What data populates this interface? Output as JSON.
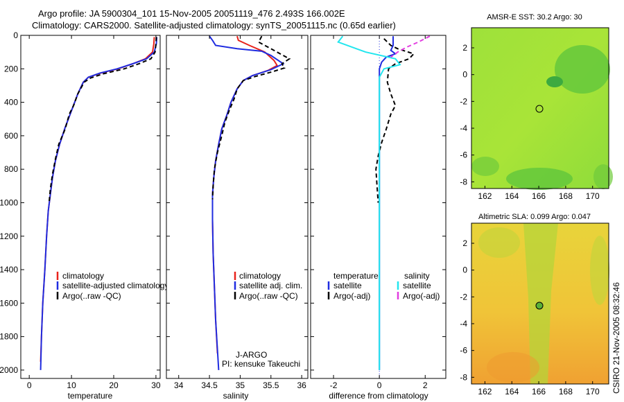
{
  "title_line1": "Argo profile: JA 5900304_101 15-Nov-2005 20051119_476 2.493S 166.002E",
  "title_line2": "Climatology: CARS2000. Satellite-adjusted climatology: synTS_20051115.nc (0.65d earlier)",
  "colors": {
    "climatology": "#e8221b",
    "satellite": "#1f2ce0",
    "argo": "#000000",
    "salinity_satellite": "#22e6ee",
    "salinity_argo": "#e23de0"
  },
  "chart_data": [
    {
      "type": "line",
      "panel": "temperature",
      "xlabel": "temperature",
      "xlim": [
        -2,
        31
      ],
      "ylim": [
        0,
        2050
      ],
      "xticks": [
        "0",
        "10",
        "20",
        "30"
      ],
      "xtick_values": [
        0,
        10,
        20,
        30
      ],
      "yticks": [
        "0",
        "200",
        "400",
        "600",
        "800",
        "1000",
        "1200",
        "1400",
        "1600",
        "1800",
        "2000"
      ],
      "ytick_values": [
        0,
        200,
        400,
        600,
        800,
        1000,
        1200,
        1400,
        1600,
        1800,
        2000
      ],
      "legend": [
        "climatology",
        "satellite-adjusted climatology",
        "Argo(..raw -QC)"
      ],
      "series": [
        {
          "name": "climatology",
          "color_key": "climatology",
          "dash": "",
          "points": [
            [
              29.6,
              10
            ],
            [
              29.5,
              50
            ],
            [
              29.2,
              100
            ],
            [
              27.5,
              140
            ],
            [
              24.5,
              170
            ],
            [
              21,
              200
            ],
            [
              17,
              225
            ],
            [
              14,
              250
            ],
            [
              12.8,
              280
            ],
            [
              11.5,
              350
            ],
            [
              10,
              450
            ],
            [
              8.5,
              550
            ],
            [
              7.2,
              650
            ],
            [
              6.2,
              750
            ],
            [
              5.5,
              850
            ],
            [
              5,
              950
            ],
            [
              4.5,
              1050
            ],
            [
              4.1,
              1200
            ],
            [
              3.7,
              1400
            ],
            [
              3.2,
              1600
            ],
            [
              2.9,
              1800
            ],
            [
              2.7,
              1950
            ]
          ]
        },
        {
          "name": "satellite-adjusted climatology",
          "color_key": "satellite",
          "dash": "",
          "points": [
            [
              30.2,
              10
            ],
            [
              30.1,
              50
            ],
            [
              29.6,
              100
            ],
            [
              27.8,
              140
            ],
            [
              24.5,
              170
            ],
            [
              20.8,
              200
            ],
            [
              16.8,
              225
            ],
            [
              14,
              250
            ],
            [
              12.8,
              280
            ],
            [
              11.5,
              350
            ],
            [
              10,
              450
            ],
            [
              8.5,
              550
            ],
            [
              7.2,
              650
            ],
            [
              6.2,
              750
            ],
            [
              5.5,
              850
            ],
            [
              5,
              950
            ],
            [
              4.5,
              1050
            ],
            [
              4.1,
              1200
            ],
            [
              3.7,
              1400
            ],
            [
              3.2,
              1600
            ],
            [
              2.9,
              1800
            ],
            [
              2.7,
              2000
            ]
          ]
        },
        {
          "name": "Argo(..raw -QC)",
          "color_key": "argo",
          "dash": "6,4",
          "points": [
            [
              30.1,
              10
            ],
            [
              30,
              50
            ],
            [
              29.8,
              100
            ],
            [
              28.8,
              140
            ],
            [
              26,
              170
            ],
            [
              22.5,
              200
            ],
            [
              17.5,
              230
            ],
            [
              14.5,
              255
            ],
            [
              13,
              280
            ],
            [
              11.5,
              350
            ],
            [
              10.5,
              420
            ],
            [
              9.5,
              470
            ],
            [
              8.5,
              560
            ],
            [
              7,
              650
            ],
            [
              6.2,
              740
            ],
            [
              5.5,
              830
            ],
            [
              5,
              920
            ],
            [
              4.7,
              1000
            ]
          ]
        }
      ]
    },
    {
      "type": "line",
      "panel": "salinity",
      "xlabel": "salinity",
      "xlim": [
        33.8,
        36.1
      ],
      "ylim": [
        0,
        2050
      ],
      "xticks": [
        "34",
        "34.5",
        "35",
        "35.5",
        "36"
      ],
      "xtick_values": [
        34,
        34.5,
        35,
        35.5,
        36
      ],
      "legend": [
        "climatology",
        "satellite adj. clim.",
        "Argo(..raw -QC)"
      ],
      "annotations": [
        "J-ARGO",
        "PI: kensuke Takeuchi"
      ],
      "series": [
        {
          "name": "climatology",
          "color_key": "climatology",
          "dash": "",
          "points": [
            [
              34.95,
              5
            ],
            [
              34.97,
              30
            ],
            [
              35.15,
              60
            ],
            [
              35.4,
              100
            ],
            [
              35.55,
              150
            ],
            [
              35.6,
              180
            ],
            [
              35.45,
              210
            ],
            [
              35.2,
              240
            ],
            [
              35.05,
              270
            ],
            [
              34.95,
              320
            ],
            [
              34.85,
              400
            ],
            [
              34.78,
              480
            ],
            [
              34.7,
              560
            ],
            [
              34.65,
              650
            ],
            [
              34.6,
              750
            ],
            [
              34.57,
              850
            ],
            [
              34.55,
              950
            ],
            [
              34.55,
              1100
            ],
            [
              34.56,
              1300
            ],
            [
              34.58,
              1500
            ],
            [
              34.6,
              1700
            ],
            [
              34.63,
              1900
            ]
          ]
        },
        {
          "name": "satellite adj. clim.",
          "color_key": "satellite",
          "dash": "",
          "points": [
            [
              34.5,
              5
            ],
            [
              34.55,
              30
            ],
            [
              34.6,
              60
            ],
            [
              34.95,
              80
            ],
            [
              35.35,
              95
            ],
            [
              35.5,
              120
            ],
            [
              35.7,
              170
            ],
            [
              35.5,
              205
            ],
            [
              35.2,
              240
            ],
            [
              35.05,
              270
            ],
            [
              34.95,
              320
            ],
            [
              34.85,
              400
            ],
            [
              34.78,
              480
            ],
            [
              34.7,
              560
            ],
            [
              34.65,
              650
            ],
            [
              34.6,
              750
            ],
            [
              34.57,
              850
            ],
            [
              34.55,
              950
            ],
            [
              34.55,
              1100
            ],
            [
              34.56,
              1300
            ],
            [
              34.58,
              1500
            ],
            [
              34.6,
              1700
            ],
            [
              34.65,
              2000
            ]
          ]
        },
        {
          "name": "Argo(..raw -QC)",
          "color_key": "argo",
          "dash": "6,4",
          "points": [
            [
              35.35,
              5
            ],
            [
              35.3,
              40
            ],
            [
              35.5,
              80
            ],
            [
              35.65,
              110
            ],
            [
              35.8,
              140
            ],
            [
              35.68,
              170
            ],
            [
              35.72,
              195
            ],
            [
              35.5,
              220
            ],
            [
              35.25,
              245
            ],
            [
              35.05,
              270
            ],
            [
              34.95,
              320
            ],
            [
              34.9,
              380
            ],
            [
              34.82,
              450
            ],
            [
              34.75,
              520
            ],
            [
              34.7,
              600
            ],
            [
              34.63,
              700
            ],
            [
              34.58,
              800
            ],
            [
              34.56,
              900
            ],
            [
              34.55,
              980
            ]
          ]
        }
      ]
    },
    {
      "type": "line",
      "panel": "difference",
      "xlabel": "difference from climatology",
      "xlim": [
        -3,
        2.9
      ],
      "ylim": [
        0,
        2050
      ],
      "xticks": [
        "-2",
        "0",
        "2"
      ],
      "xtick_values": [
        -2,
        0,
        2
      ],
      "legend_headers": [
        "temperature",
        "salinity"
      ],
      "legend": [
        "satellite",
        "Argo(-adj)",
        "satellite",
        "Argo(-adj)"
      ],
      "series": [
        {
          "name": "temperature satellite",
          "color_key": "satellite",
          "dash": "",
          "points": [
            [
              0.6,
              5
            ],
            [
              0.6,
              60
            ],
            [
              0.5,
              90
            ],
            [
              0.7,
              110
            ],
            [
              0.3,
              130
            ],
            [
              0.1,
              160
            ],
            [
              0,
              200
            ],
            [
              0,
              400
            ],
            [
              0,
              1000
            ],
            [
              0,
              2000
            ]
          ]
        },
        {
          "name": "temperature Argo(-adj)",
          "color_key": "argo",
          "dash": "6,4",
          "points": [
            [
              0.2,
              20
            ],
            [
              0.5,
              60
            ],
            [
              0.8,
              80
            ],
            [
              1.5,
              110
            ],
            [
              1.3,
              140
            ],
            [
              0.7,
              170
            ],
            [
              0.4,
              200
            ],
            [
              0.35,
              280
            ],
            [
              0.5,
              350
            ],
            [
              0.7,
              420
            ],
            [
              0.5,
              470
            ],
            [
              0.3,
              560
            ],
            [
              0.1,
              640
            ],
            [
              -0.05,
              720
            ],
            [
              -0.15,
              800
            ],
            [
              -0.1,
              900
            ],
            [
              -0.05,
              1000
            ]
          ]
        },
        {
          "name": "salinity satellite",
          "color_key": "salinity_satellite",
          "dash": "",
          "points": [
            [
              -1.6,
              5
            ],
            [
              -1.8,
              40
            ],
            [
              -1,
              80
            ],
            [
              -0.6,
              100
            ],
            [
              0.7,
              140
            ],
            [
              0.9,
              175
            ],
            [
              0.2,
              200
            ],
            [
              0,
              250
            ],
            [
              0,
              400
            ],
            [
              0,
              1000
            ],
            [
              0,
              2000
            ]
          ]
        },
        {
          "name": "salinity Argo(-adj)",
          "color_key": "salinity_argo",
          "dash": "6,4",
          "points": [
            [
              2.2,
              5
            ],
            [
              1.7,
              40
            ],
            [
              1.2,
              70
            ],
            [
              0.8,
              100
            ],
            [
              0.5,
              130
            ]
          ]
        }
      ]
    }
  ],
  "maps": [
    {
      "title": "AMSR-E SST: 30.2 Argo: 30",
      "xticks": [
        "162",
        "164",
        "166",
        "168",
        "170"
      ],
      "yticks": [
        "2",
        "0",
        "-2",
        "-4",
        "-6",
        "-8"
      ]
    },
    {
      "title": "Altimetric SLA: 0.099 Argo: 0.047",
      "xticks": [
        "162",
        "164",
        "166",
        "168",
        "170"
      ],
      "yticks": [
        "2",
        "0",
        "-2",
        "-4",
        "-6",
        "-8"
      ]
    }
  ],
  "credit": "CSIRO 21-Nov-2005 08:32:46"
}
